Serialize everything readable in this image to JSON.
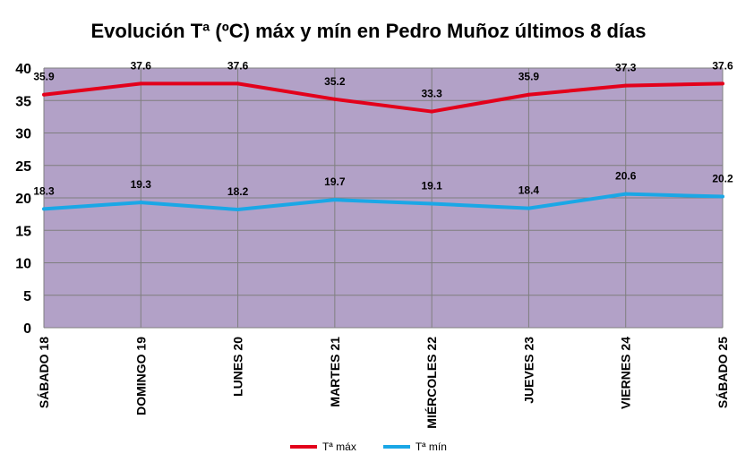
{
  "chart_data": {
    "type": "line",
    "title": "Evolución Tª (ºC) máx y mín en Pedro Muñoz últimos 8 días",
    "categories": [
      "SÁBADO 18",
      "DOMINGO 19",
      "LUNES 20",
      "MARTES 21",
      "MIÉRCOLES 22",
      "JUEVES 23",
      "VIERNES 24",
      "SÁBADO 25"
    ],
    "series": [
      {
        "name": "Tª máx",
        "color": "#e3001b",
        "values": [
          35.9,
          37.6,
          37.6,
          35.2,
          33.3,
          35.9,
          37.3,
          37.6
        ]
      },
      {
        "name": "Tª mín",
        "color": "#1aa7e6",
        "values": [
          18.3,
          19.3,
          18.2,
          19.7,
          19.1,
          18.4,
          20.6,
          20.2
        ]
      }
    ],
    "yticks": [
      0,
      5,
      10,
      15,
      20,
      25,
      30,
      35,
      40
    ],
    "ylim": [
      0,
      40
    ],
    "xlabel": "",
    "ylabel": "",
    "grid": true,
    "legend": "bottom",
    "plot_background": "#b2a1c7"
  }
}
